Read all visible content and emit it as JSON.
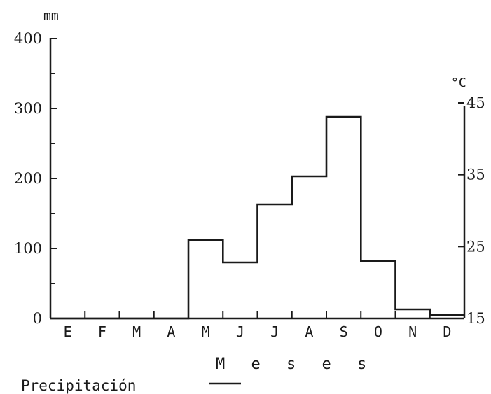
{
  "chart_data": {
    "type": "line",
    "step": true,
    "xlabel": "M e s e s",
    "categories": [
      "E",
      "F",
      "M",
      "A",
      "M",
      "J",
      "J",
      "A",
      "S",
      "O",
      "N",
      "D"
    ],
    "left_axis": {
      "unit": "mm",
      "ylim": [
        0,
        400
      ],
      "ticks": [
        "0",
        "100",
        "200",
        "300",
        "400"
      ]
    },
    "right_axis": {
      "unit": "°C",
      "ylim": [
        15,
        45
      ],
      "ticks": [
        "15",
        "25",
        "35",
        "45"
      ]
    },
    "series": [
      {
        "name": "Precipitación",
        "axis": "left",
        "values": [
          0,
          0,
          0,
          0,
          112,
          80,
          163,
          203,
          288,
          82,
          13,
          5
        ]
      }
    ],
    "legend": {
      "entries": [
        "Precipitación"
      ],
      "placement": "bottom-left"
    },
    "grid": false
  }
}
